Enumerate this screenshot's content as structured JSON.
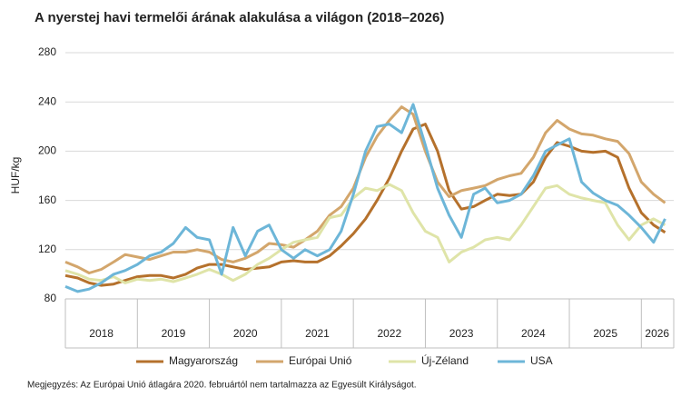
{
  "chart_data": {
    "type": "line",
    "title": "A nyerstej havi termelői árának alakulása a világon (2018–2026)",
    "y_label": "HUF/kg",
    "note": "Megjegyzés: Az Európai Unió átlagára 2020. februártól nem tartalmazza az Egyesült Királyságot.",
    "x": [
      2018,
      2018.17,
      2018.33,
      2018.5,
      2018.67,
      2018.83,
      2019,
      2019.17,
      2019.33,
      2019.5,
      2019.67,
      2019.83,
      2020,
      2020.17,
      2020.33,
      2020.5,
      2020.67,
      2020.83,
      2021,
      2021.17,
      2021.33,
      2021.5,
      2021.67,
      2021.83,
      2022,
      2022.17,
      2022.33,
      2022.5,
      2022.67,
      2022.83,
      2023,
      2023.17,
      2023.33,
      2023.5,
      2023.67,
      2023.83,
      2024,
      2024.17,
      2024.33,
      2024.5,
      2024.67,
      2024.83,
      2025,
      2025.17,
      2025.33,
      2025.5,
      2025.67,
      2025.83,
      2026,
      2026.17,
      2026.33
    ],
    "xlim": [
      2018,
      2026.45
    ],
    "xticks": [
      {
        "value": 2018.5,
        "label": "2018"
      },
      {
        "value": 2019.5,
        "label": "2019"
      },
      {
        "value": 2020.5,
        "label": "2020"
      },
      {
        "value": 2021.5,
        "label": "2021"
      },
      {
        "value": 2022.5,
        "label": "2022"
      },
      {
        "value": 2023.5,
        "label": "2023"
      },
      {
        "value": 2024.5,
        "label": "2024"
      },
      {
        "value": 2025.5,
        "label": "2025"
      },
      {
        "value": 2026.22,
        "label": "2026"
      }
    ],
    "x_boundaries": [
      2018,
      2019,
      2020,
      2021,
      2022,
      2023,
      2024,
      2025,
      2026
    ],
    "ylim": [
      80,
      280
    ],
    "yticks": [
      80,
      120,
      160,
      200,
      240,
      280
    ],
    "grid": true,
    "legend": "bottom",
    "series": [
      {
        "name": "Magyarország",
        "color": "#b5712c",
        "values": [
          99,
          97,
          93,
          91,
          92,
          95,
          98,
          99,
          99,
          97,
          100,
          105,
          108,
          108,
          106,
          104,
          105,
          106,
          110,
          111,
          110,
          110,
          115,
          123,
          133,
          145,
          160,
          178,
          200,
          218,
          222,
          200,
          168,
          153,
          155,
          160,
          165,
          164,
          165,
          175,
          195,
          207,
          204,
          200,
          199,
          200,
          195,
          170,
          150,
          140,
          134
        ]
      },
      {
        "name": "Európai Unió",
        "color": "#d3a66c",
        "values": [
          110,
          106,
          101,
          104,
          110,
          116,
          114,
          112,
          115,
          118,
          118,
          120,
          118,
          112,
          110,
          113,
          118,
          125,
          124,
          122,
          128,
          135,
          148,
          155,
          170,
          195,
          212,
          225,
          236,
          230,
          200,
          175,
          163,
          168,
          170,
          172,
          177,
          180,
          182,
          195,
          215,
          225,
          218,
          214,
          213,
          210,
          208,
          198,
          175,
          165,
          158
        ]
      },
      {
        "name": "Új-Zéland",
        "color": "#dfe4a8",
        "values": [
          103,
          100,
          96,
          95,
          98,
          93,
          96,
          95,
          96,
          94,
          97,
          100,
          104,
          100,
          95,
          100,
          108,
          113,
          120,
          126,
          128,
          130,
          146,
          148,
          162,
          170,
          168,
          173,
          168,
          150,
          135,
          130,
          110,
          118,
          122,
          128,
          130,
          128,
          140,
          155,
          170,
          172,
          165,
          162,
          160,
          158,
          140,
          128,
          140,
          145,
          140
        ]
      },
      {
        "name": "USA",
        "color": "#6db6d8",
        "values": [
          90,
          86,
          88,
          93,
          100,
          103,
          108,
          115,
          118,
          125,
          138,
          130,
          128,
          100,
          138,
          115,
          135,
          140,
          120,
          113,
          120,
          115,
          120,
          135,
          165,
          200,
          220,
          222,
          215,
          238,
          205,
          170,
          148,
          130,
          165,
          170,
          158,
          160,
          165,
          180,
          200,
          205,
          210,
          175,
          166,
          160,
          156,
          148,
          138,
          126,
          145
        ]
      }
    ]
  }
}
